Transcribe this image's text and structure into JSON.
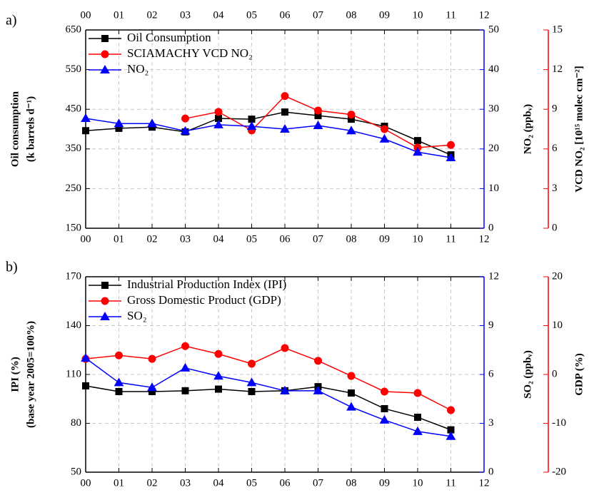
{
  "chart_data": [
    {
      "type": "line",
      "label": "a)",
      "x": [
        0,
        1,
        2,
        3,
        4,
        5,
        6,
        7,
        8,
        9,
        10,
        11
      ],
      "xlim": [
        0,
        12
      ],
      "xticks": [
        {
          "value": 0,
          "label": "00"
        },
        {
          "value": 1,
          "label": "01"
        },
        {
          "value": 2,
          "label": "02"
        },
        {
          "value": 3,
          "label": "03"
        },
        {
          "value": 4,
          "label": "04"
        },
        {
          "value": 5,
          "label": "05"
        },
        {
          "value": 6,
          "label": "06"
        },
        {
          "value": 7,
          "label": "07"
        },
        {
          "value": 8,
          "label": "08"
        },
        {
          "value": 9,
          "label": "09"
        },
        {
          "value": 10,
          "label": "10"
        },
        {
          "value": 11,
          "label": "11"
        },
        {
          "value": 12,
          "label": "12"
        }
      ],
      "xticks_top": true,
      "ylabel": [
        "Oil consumption",
        "(k barrels d⁻¹)"
      ],
      "ylim": [
        150,
        650
      ],
      "yticks": [
        150,
        250,
        350,
        450,
        550,
        650
      ],
      "y2label": "NO₂ (ppbᵥ)",
      "y2color": "#0000ff",
      "y2lim": [
        0,
        50
      ],
      "y2ticks": [
        0,
        10,
        20,
        30,
        40,
        50
      ],
      "y3label": "VCD NO₂ [10¹⁵ molec cm⁻²]",
      "y3color": "#ff0000",
      "y3lim": [
        0,
        15
      ],
      "y3ticks": [
        0,
        3,
        6,
        9,
        12,
        15
      ],
      "grid": true,
      "legend": "upper left",
      "series": [
        {
          "name": "Oil Consumption",
          "color": "#000000",
          "marker": "square",
          "axis": "y",
          "values": [
            396,
            402,
            405,
            393,
            427,
            425,
            443,
            434,
            425,
            407,
            371,
            335
          ]
        },
        {
          "name": "SCIAMACHY VCD NO₂",
          "color": "#ff0000",
          "marker": "circle",
          "axis": "y3",
          "values": [
            null,
            null,
            null,
            8.3,
            8.8,
            7.4,
            10.0,
            8.9,
            8.6,
            7.5,
            6.1,
            6.3
          ]
        },
        {
          "name": "NO₂",
          "color": "#0000ff",
          "marker": "triangle",
          "axis": "y2",
          "values": [
            27.7,
            26.4,
            26.4,
            24.5,
            26.1,
            25.7,
            25.0,
            25.9,
            24.6,
            22.5,
            19.2,
            17.8
          ]
        }
      ]
    },
    {
      "type": "line",
      "label": "b)",
      "x": [
        0,
        1,
        2,
        3,
        4,
        5,
        6,
        7,
        8,
        9,
        10,
        11
      ],
      "xlim": [
        0,
        12
      ],
      "xticks": [
        {
          "value": 0,
          "label": "00"
        },
        {
          "value": 1,
          "label": "01"
        },
        {
          "value": 2,
          "label": "02"
        },
        {
          "value": 3,
          "label": "03"
        },
        {
          "value": 4,
          "label": "04"
        },
        {
          "value": 5,
          "label": "05"
        },
        {
          "value": 6,
          "label": "06"
        },
        {
          "value": 7,
          "label": "07"
        },
        {
          "value": 8,
          "label": "08"
        },
        {
          "value": 9,
          "label": "09"
        },
        {
          "value": 10,
          "label": "10"
        },
        {
          "value": 11,
          "label": "11"
        },
        {
          "value": 12,
          "label": "12"
        }
      ],
      "xticks_top": false,
      "ylabel": [
        "IPI (%)",
        "(base year 2005=100%)"
      ],
      "ylim": [
        50,
        170
      ],
      "yticks": [
        50,
        80,
        110,
        140,
        170
      ],
      "y2label": "SO₂ (ppbᵥ)",
      "y2color": "#0000ff",
      "y2lim": [
        0,
        12
      ],
      "y2ticks": [
        0,
        3,
        6,
        9,
        12
      ],
      "y3label": "GDP (%)",
      "y3color": "#ff0000",
      "y3lim": [
        -20,
        20
      ],
      "y3ticks": [
        -20,
        -10,
        0,
        10,
        20
      ],
      "grid": true,
      "legend": "upper left",
      "series": [
        {
          "name": "Industrial Production Index (IPI)",
          "color": "#000000",
          "marker": "square",
          "axis": "y",
          "values": [
            103,
            99.5,
            99.5,
            100,
            101,
            99.5,
            100,
            102.5,
            98.6,
            89,
            83.7,
            76
          ]
        },
        {
          "name": "Gross Domestic Product (GDP)",
          "color": "#ff0000",
          "marker": "circle",
          "axis": "y3",
          "values": [
            3.2,
            3.9,
            3.2,
            5.8,
            4.2,
            2.2,
            5.4,
            2.8,
            -0.3,
            -3.5,
            -3.8,
            -7.3
          ]
        },
        {
          "name": "SO₂",
          "color": "#0000ff",
          "marker": "triangle",
          "axis": "y2",
          "values": [
            7.0,
            5.5,
            5.2,
            6.4,
            5.9,
            5.5,
            5.0,
            5.0,
            4.0,
            3.2,
            2.5,
            2.2
          ]
        }
      ]
    }
  ]
}
